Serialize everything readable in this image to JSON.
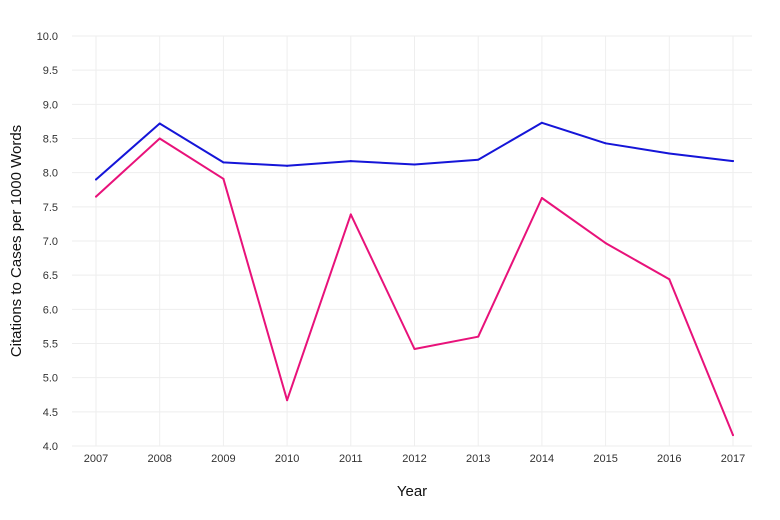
{
  "chart_data": {
    "type": "line",
    "title": "",
    "xlabel": "Year",
    "ylabel": "Citations to Cases per 1000 Words",
    "x": [
      "2007",
      "2008",
      "2009",
      "2010",
      "2011",
      "2012",
      "2013",
      "2014",
      "2015",
      "2016",
      "2017"
    ],
    "ylim": [
      4.0,
      10.0
    ],
    "yticks": [
      "4.0",
      "4.5",
      "5.0",
      "5.5",
      "6.0",
      "6.5",
      "7.0",
      "7.5",
      "8.0",
      "8.5",
      "9.0",
      "9.5",
      "10.0"
    ],
    "grid": true,
    "legend": "none",
    "series": [
      {
        "color": "#1515d8",
        "values": [
          7.9,
          8.72,
          8.15,
          8.1,
          8.17,
          8.12,
          8.19,
          8.73,
          8.43,
          8.28,
          8.17
        ]
      },
      {
        "color": "#e8127a",
        "values": [
          7.65,
          8.5,
          7.91,
          4.67,
          7.39,
          5.42,
          5.6,
          7.63,
          6.97,
          6.44,
          4.16
        ]
      }
    ]
  }
}
